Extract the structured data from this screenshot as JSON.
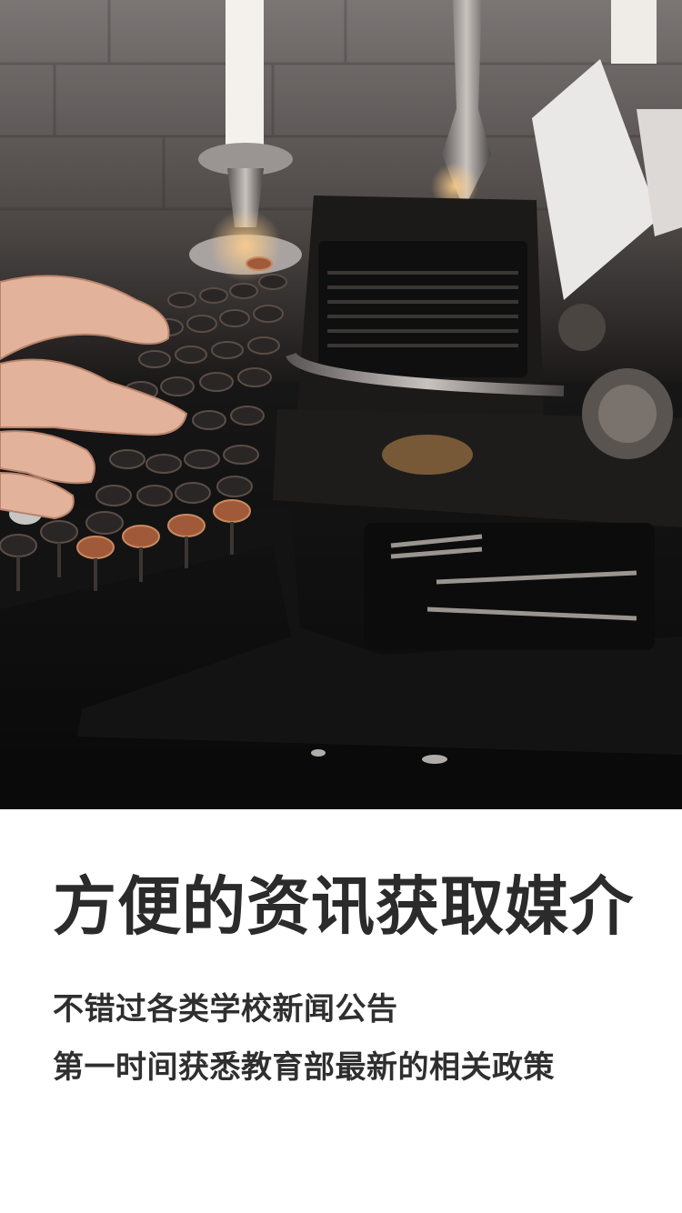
{
  "hero": {
    "image_subject": "typewriter-photo",
    "palette": {
      "wall": "#6e6a69",
      "desk": "#0e0e0e",
      "machine": "#151515",
      "key_dark": "#2a2626",
      "key_copper": "#a05a3a",
      "skin": "#e2b29b",
      "paper": "#eae8e6",
      "candle": "#f4f1ec"
    }
  },
  "content": {
    "title": "方便的资讯获取媒介",
    "lines": [
      "不错过各类学校新闻公告",
      "第一时间获悉教育部最新的相关政策"
    ]
  }
}
